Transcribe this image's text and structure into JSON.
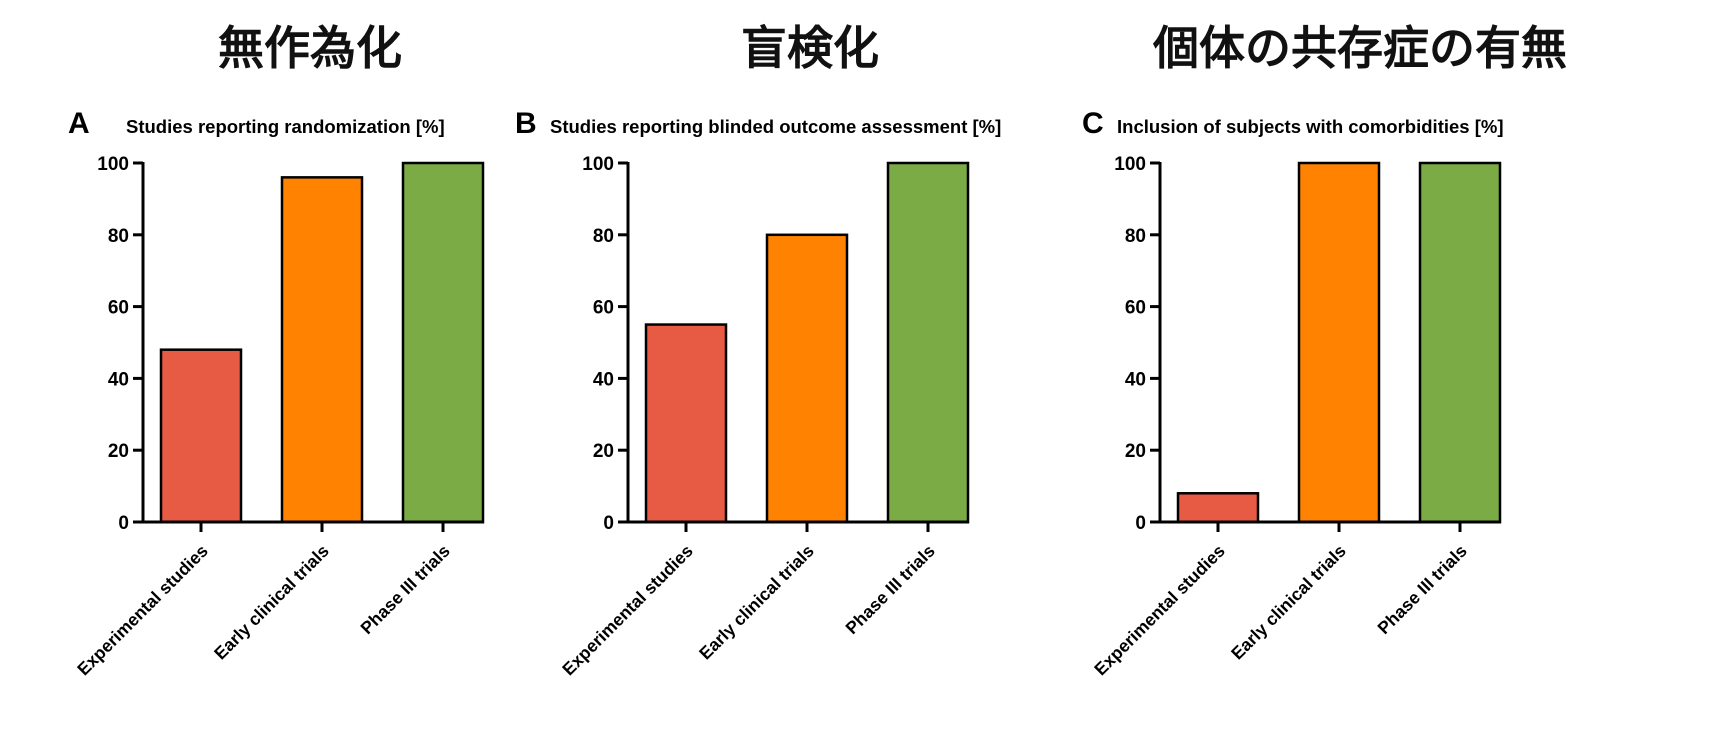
{
  "headers": [
    "無作為化",
    "盲検化",
    "個体の共存症の有無"
  ],
  "colors": {
    "experimental": "#e75a43",
    "early": "#ff8200",
    "phase3": "#7bab44",
    "axis": "#000000"
  },
  "chart_data": [
    {
      "type": "bar",
      "panel": "A",
      "title": "Studies reporting randomization [%]",
      "categories": [
        "Experimental studies",
        "Early clinical trials",
        "Phase III trials"
      ],
      "values": [
        48,
        96,
        100
      ],
      "yticks": [
        0,
        20,
        40,
        60,
        80,
        100
      ],
      "ylim": [
        0,
        100
      ],
      "grid": false
    },
    {
      "type": "bar",
      "panel": "B",
      "title": "Studies reporting blinded outcome assessment [%]",
      "categories": [
        "Experimental studies",
        "Early clinical trials",
        "Phase III trials"
      ],
      "values": [
        55,
        80,
        100
      ],
      "yticks": [
        0,
        20,
        40,
        60,
        80,
        100
      ],
      "ylim": [
        0,
        100
      ],
      "grid": false
    },
    {
      "type": "bar",
      "panel": "C",
      "title": "Inclusion of subjects with comorbidities [%]",
      "categories": [
        "Experimental studies",
        "Early clinical trials",
        "Phase III trials"
      ],
      "values": [
        8,
        100,
        100
      ],
      "yticks": [
        0,
        20,
        40,
        60,
        80,
        100
      ],
      "ylim": [
        0,
        100
      ],
      "grid": false
    }
  ]
}
